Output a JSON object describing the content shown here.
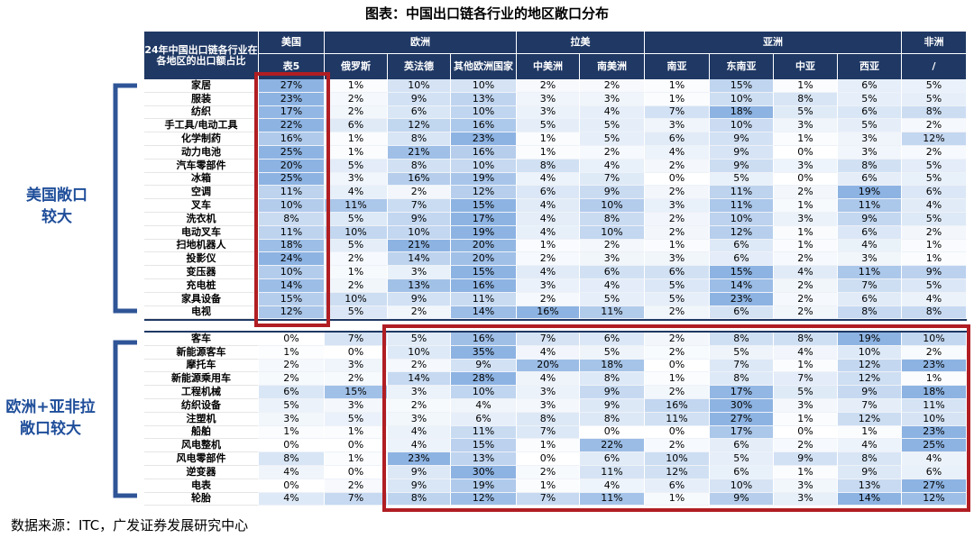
{
  "title": "图表：中国出口链各行业的地区敞口分布",
  "side_labels": [
    [
      "美国敞口",
      "较大"
    ],
    [
      "欧洲+亚非拉",
      "敞口较大"
    ]
  ],
  "table": {
    "corner": "24年中国出口链各行业在各地区的出口额占比",
    "header_groups": [
      "美国",
      "欧洲",
      "拉美",
      "亚洲",
      "非洲"
    ],
    "subheaders": [
      "表5",
      "俄罗斯",
      "英法德",
      "其他欧洲国家",
      "中美洲",
      "南美洲",
      "南亚",
      "东南亚",
      "中亚",
      "西亚",
      "/"
    ],
    "sections": [
      {
        "rows": [
          {
            "label": "家居",
            "cells": [
              "27%",
              "1%",
              "10%",
              "10%",
              "2%",
              "2%",
              "1%",
              "15%",
              "1%",
              "6%",
              "5%"
            ]
          },
          {
            "label": "服装",
            "cells": [
              "23%",
              "2%",
              "9%",
              "13%",
              "3%",
              "3%",
              "1%",
              "10%",
              "8%",
              "5%",
              "5%"
            ]
          },
          {
            "label": "纺织",
            "cells": [
              "17%",
              "2%",
              "6%",
              "10%",
              "3%",
              "4%",
              "7%",
              "18%",
              "5%",
              "6%",
              "8%"
            ]
          },
          {
            "label": "手工具/电动工具",
            "cells": [
              "22%",
              "6%",
              "12%",
              "16%",
              "5%",
              "5%",
              "3%",
              "10%",
              "3%",
              "5%",
              "2%"
            ]
          },
          {
            "label": "化学制药",
            "cells": [
              "16%",
              "1%",
              "8%",
              "23%",
              "1%",
              "5%",
              "6%",
              "9%",
              "1%",
              "3%",
              "12%"
            ]
          },
          {
            "label": "动力电池",
            "cells": [
              "25%",
              "1%",
              "21%",
              "16%",
              "1%",
              "2%",
              "4%",
              "9%",
              "0%",
              "3%",
              "2%"
            ]
          },
          {
            "label": "汽车零部件",
            "cells": [
              "20%",
              "5%",
              "8%",
              "10%",
              "8%",
              "4%",
              "2%",
              "9%",
              "3%",
              "8%",
              "5%"
            ]
          },
          {
            "label": "冰箱",
            "cells": [
              "25%",
              "3%",
              "16%",
              "19%",
              "4%",
              "7%",
              "0%",
              "5%",
              "0%",
              "6%",
              "5%"
            ]
          },
          {
            "label": "空调",
            "cells": [
              "11%",
              "4%",
              "2%",
              "12%",
              "6%",
              "9%",
              "2%",
              "11%",
              "2%",
              "19%",
              "6%"
            ]
          },
          {
            "label": "叉车",
            "cells": [
              "10%",
              "11%",
              "7%",
              "15%",
              "4%",
              "10%",
              "3%",
              "11%",
              "1%",
              "11%",
              "4%"
            ]
          },
          {
            "label": "洗衣机",
            "cells": [
              "8%",
              "5%",
              "9%",
              "17%",
              "4%",
              "8%",
              "2%",
              "10%",
              "3%",
              "9%",
              "5%"
            ]
          },
          {
            "label": "电动叉车",
            "cells": [
              "11%",
              "10%",
              "10%",
              "19%",
              "4%",
              "10%",
              "2%",
              "12%",
              "1%",
              "6%",
              "2%"
            ]
          },
          {
            "label": "扫地机器人",
            "cells": [
              "18%",
              "5%",
              "21%",
              "20%",
              "1%",
              "2%",
              "1%",
              "6%",
              "1%",
              "4%",
              "1%"
            ]
          },
          {
            "label": "投影仪",
            "cells": [
              "24%",
              "2%",
              "14%",
              "20%",
              "2%",
              "3%",
              "3%",
              "6%",
              "2%",
              "3%",
              "1%"
            ]
          },
          {
            "label": "变压器",
            "cells": [
              "10%",
              "1%",
              "3%",
              "15%",
              "4%",
              "6%",
              "6%",
              "15%",
              "4%",
              "11%",
              "9%"
            ]
          },
          {
            "label": "充电桩",
            "cells": [
              "14%",
              "2%",
              "13%",
              "16%",
              "3%",
              "4%",
              "5%",
              "14%",
              "2%",
              "7%",
              "5%"
            ]
          },
          {
            "label": "家具设备",
            "cells": [
              "15%",
              "10%",
              "9%",
              "11%",
              "2%",
              "5%",
              "5%",
              "23%",
              "2%",
              "6%",
              "4%"
            ]
          },
          {
            "label": "电视",
            "cells": [
              "12%",
              "5%",
              "2%",
              "14%",
              "16%",
              "11%",
              "2%",
              "6%",
              "2%",
              "8%",
              "8%"
            ]
          }
        ]
      },
      {
        "rows": [
          {
            "label": "客车",
            "cells": [
              "0%",
              "7%",
              "5%",
              "16%",
              "7%",
              "6%",
              "2%",
              "8%",
              "8%",
              "19%",
              "10%"
            ]
          },
          {
            "label": "新能源客车",
            "cells": [
              "1%",
              "0%",
              "10%",
              "35%",
              "4%",
              "5%",
              "2%",
              "5%",
              "4%",
              "10%",
              "2%"
            ]
          },
          {
            "label": "摩托车",
            "cells": [
              "2%",
              "3%",
              "2%",
              "9%",
              "20%",
              "18%",
              "0%",
              "7%",
              "1%",
              "12%",
              "23%"
            ]
          },
          {
            "label": "新能源乘用车",
            "cells": [
              "2%",
              "2%",
              "14%",
              "28%",
              "4%",
              "8%",
              "1%",
              "8%",
              "7%",
              "12%",
              "1%"
            ]
          },
          {
            "label": "工程机械",
            "cells": [
              "6%",
              "15%",
              "3%",
              "10%",
              "3%",
              "9%",
              "2%",
              "17%",
              "5%",
              "9%",
              "18%"
            ]
          },
          {
            "label": "纺织设备",
            "cells": [
              "5%",
              "3%",
              "2%",
              "4%",
              "3%",
              "9%",
              "16%",
              "30%",
              "3%",
              "7%",
              "11%"
            ]
          },
          {
            "label": "注塑机",
            "cells": [
              "3%",
              "5%",
              "3%",
              "6%",
              "8%",
              "8%",
              "11%",
              "27%",
              "1%",
              "12%",
              "10%"
            ]
          },
          {
            "label": "船舶",
            "cells": [
              "1%",
              "1%",
              "4%",
              "11%",
              "7%",
              "0%",
              "0%",
              "17%",
              "0%",
              "1%",
              "23%"
            ]
          },
          {
            "label": "风电整机",
            "cells": [
              "0%",
              "0%",
              "4%",
              "15%",
              "1%",
              "22%",
              "2%",
              "6%",
              "2%",
              "4%",
              "25%"
            ]
          },
          {
            "label": "风电零部件",
            "cells": [
              "8%",
              "1%",
              "23%",
              "13%",
              "0%",
              "6%",
              "10%",
              "5%",
              "9%",
              "8%",
              "4%"
            ]
          },
          {
            "label": "逆变器",
            "cells": [
              "4%",
              "0%",
              "9%",
              "30%",
              "2%",
              "11%",
              "12%",
              "6%",
              "1%",
              "9%",
              "6%"
            ]
          },
          {
            "label": "电表",
            "cells": [
              "0%",
              "2%",
              "9%",
              "19%",
              "1%",
              "4%",
              "6%",
              "10%",
              "3%",
              "13%",
              "27%"
            ]
          },
          {
            "label": "轮胎",
            "cells": [
              "4%",
              "7%",
              "8%",
              "12%",
              "7%",
              "11%",
              "1%",
              "9%",
              "3%",
              "14%",
              "12%"
            ]
          }
        ]
      }
    ]
  },
  "source": "数据来源：ITC，广发证券发展研究中心"
}
